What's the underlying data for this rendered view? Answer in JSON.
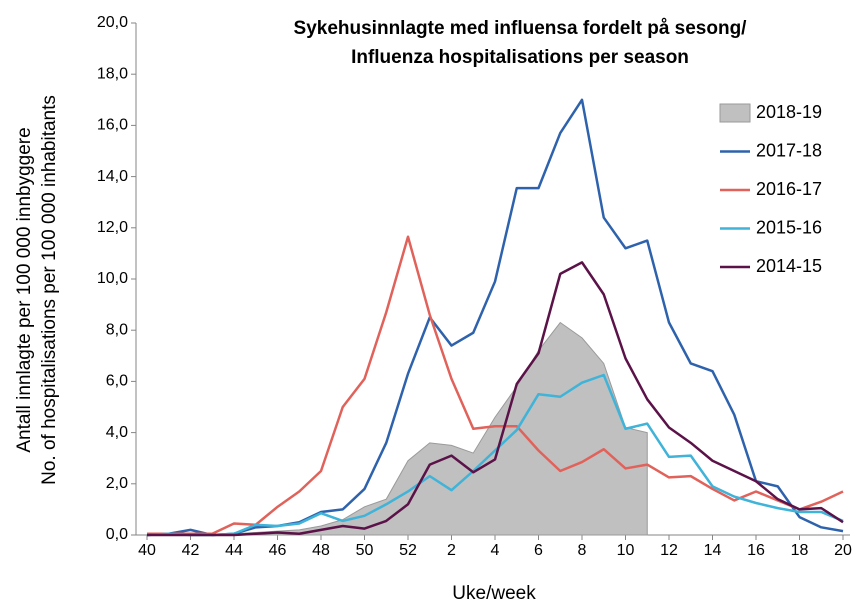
{
  "chart_data": {
    "type": "line",
    "title": [
      "Sykehusinnlagte med influensa fordelt på sesong/",
      "Influenza hospitalisations per season"
    ],
    "x_label": "Uke/week",
    "y_label": [
      "Antall innlagte per 100 000 innbyggere",
      "No. of hospitalisations per 100 000 inhabitants"
    ],
    "categories": [
      "40",
      null,
      "42",
      null,
      "44",
      null,
      "46",
      null,
      "48",
      null,
      "50",
      null,
      "52",
      null,
      "2",
      null,
      "4",
      null,
      "6",
      null,
      "8",
      null,
      "10",
      null,
      "12",
      null,
      "14",
      null,
      "16",
      null,
      "18",
      null,
      "20"
    ],
    "ylim": [
      0,
      20
    ],
    "yticks": [
      {
        "value": 0,
        "label": "0,0"
      },
      {
        "value": 2,
        "label": "2,0"
      },
      {
        "value": 4,
        "label": "4,0"
      },
      {
        "value": 6,
        "label": "6,0"
      },
      {
        "value": 8,
        "label": "8,0"
      },
      {
        "value": 10,
        "label": "10,0"
      },
      {
        "value": 12,
        "label": "12,0"
      },
      {
        "value": 14,
        "label": "14,0"
      },
      {
        "value": 16,
        "label": "16,0"
      },
      {
        "value": 18,
        "label": "18,0"
      },
      {
        "value": 20,
        "label": "20,0"
      }
    ],
    "grid": false,
    "legend": "upper right",
    "series": [
      {
        "name": "2018-19",
        "type": "area",
        "color": "#c0c0c0",
        "values": [
          0,
          0,
          0,
          0,
          0.05,
          0.1,
          0.15,
          0.2,
          0.35,
          0.6,
          1.1,
          1.4,
          2.9,
          3.6,
          3.5,
          3.2,
          4.6,
          5.8,
          7.2,
          8.3,
          7.7,
          6.7,
          4.2,
          4.0,
          null,
          null,
          null,
          null,
          null,
          null,
          null,
          null,
          null
        ]
      },
      {
        "name": "2017-18",
        "type": "line",
        "color": "#2e62ac",
        "values": [
          0,
          0.05,
          0.2,
          0,
          0.05,
          0.3,
          0.35,
          0.5,
          0.9,
          1.0,
          1.8,
          3.6,
          6.3,
          8.5,
          7.4,
          7.9,
          9.9,
          13.55,
          13.55,
          15.7,
          17.0,
          12.4,
          11.2,
          11.5,
          8.3,
          6.7,
          6.4,
          4.7,
          2.1,
          1.9,
          0.7,
          0.3,
          0.15
        ]
      },
      {
        "name": "2016-17",
        "type": "line",
        "color": "#e0625a",
        "values": [
          0.05,
          0.05,
          0.05,
          0.05,
          0.45,
          0.4,
          1.1,
          1.7,
          2.5,
          5.0,
          6.1,
          8.7,
          11.65,
          8.6,
          6.1,
          4.15,
          4.25,
          4.25,
          3.3,
          2.5,
          2.85,
          3.35,
          2.6,
          2.75,
          2.25,
          2.3,
          1.8,
          1.35,
          1.7,
          1.35,
          1.0,
          1.3,
          1.7
        ]
      },
      {
        "name": "2015-16",
        "type": "line",
        "color": "#3fb3d8",
        "values": [
          0,
          0.05,
          0,
          0,
          0.05,
          0.4,
          0.35,
          0.45,
          0.85,
          0.55,
          0.75,
          1.2,
          1.7,
          2.3,
          1.75,
          2.5,
          3.3,
          4.1,
          5.5,
          5.4,
          5.95,
          6.25,
          4.15,
          4.35,
          3.05,
          3.1,
          1.9,
          1.5,
          1.25,
          1.05,
          0.9,
          0.9,
          0.55
        ]
      },
      {
        "name": "2014-15",
        "type": "line",
        "color": "#5b1248",
        "values": [
          0,
          0,
          0,
          0,
          0,
          0.05,
          0.1,
          0.05,
          0.2,
          0.35,
          0.25,
          0.55,
          1.2,
          2.75,
          3.1,
          2.45,
          2.95,
          5.9,
          7.1,
          10.2,
          10.65,
          9.4,
          6.9,
          5.3,
          4.2,
          3.6,
          2.9,
          2.5,
          2.1,
          1.4,
          1.0,
          1.05,
          0.5
        ]
      }
    ]
  }
}
